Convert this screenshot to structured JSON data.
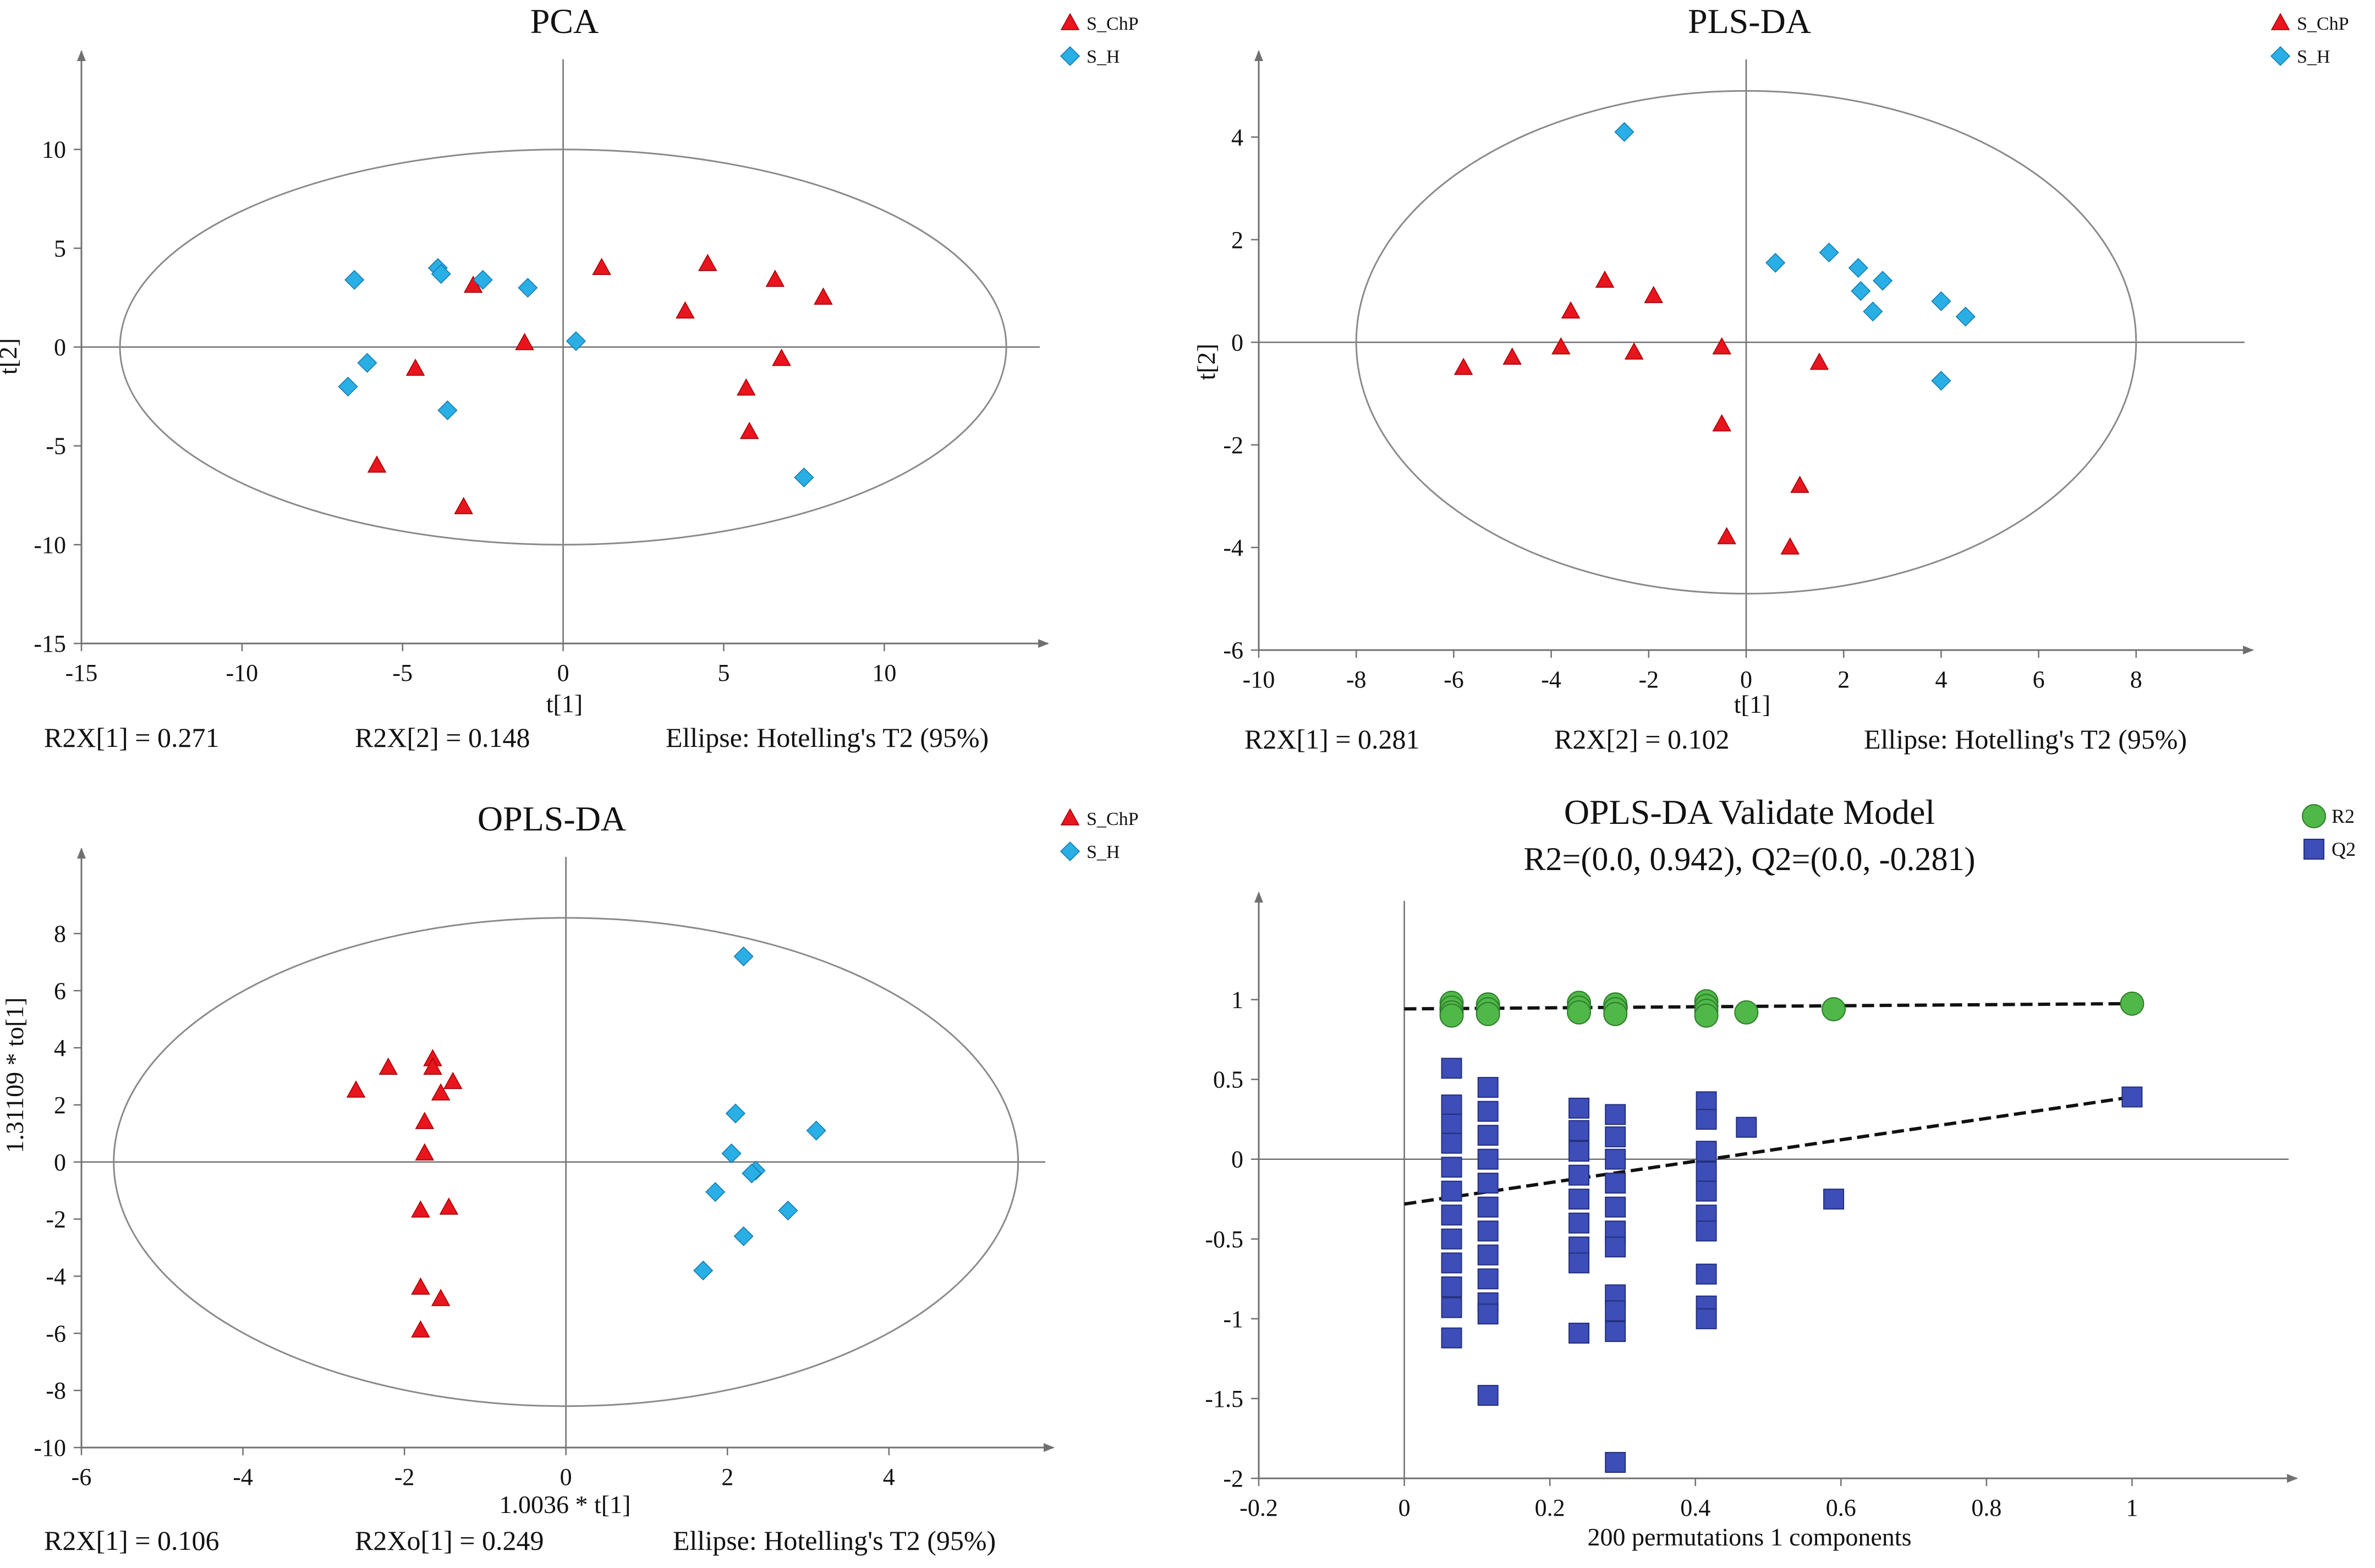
{
  "colors": {
    "red": "#e8141e",
    "blue": "#29aee6",
    "green": "#4fb848",
    "navy": "#3d4eb8",
    "axis": "#707070"
  },
  "chart_data": [
    {
      "id": "pca",
      "type": "scatter",
      "title": "PCA",
      "xlabel": "t[1]",
      "ylabel": "t[2]",
      "xlim": [
        -15,
        14.5
      ],
      "ylim": [
        -15,
        14
      ],
      "xticks": [
        -15,
        -10,
        -5,
        0,
        5,
        10
      ],
      "yticks": [
        -15,
        -10,
        -5,
        0,
        5,
        10
      ],
      "xtick_labels": [
        "-15",
        "-10",
        "-5",
        "0",
        "5",
        "10"
      ],
      "ytick_labels": [
        "-15",
        "-10",
        "-5",
        "0",
        "5",
        "10"
      ],
      "ellipse": {
        "cx": 0,
        "cy": 0,
        "rx": 13.8,
        "ry": 10.0
      },
      "legend": [
        "S_ChP",
        "S_H"
      ],
      "legend_position": "top-right",
      "stats": [
        "R2X[1] = 0.271",
        "R2X[2] = 0.148",
        "Ellipse: Hotelling's T2 (95%)"
      ],
      "series": [
        {
          "name": "S_ChP",
          "marker": "triangle",
          "color": "#e8141e",
          "points": [
            [
              1.2,
              4
            ],
            [
              4.5,
              4.2
            ],
            [
              6.6,
              3.4
            ],
            [
              8.1,
              2.5
            ],
            [
              3.8,
              1.8
            ],
            [
              -2.8,
              3.1
            ],
            [
              -1.2,
              0.2
            ],
            [
              6.8,
              -0.6
            ],
            [
              5.7,
              -2.1
            ],
            [
              5.8,
              -4.3
            ],
            [
              -4.6,
              -1.1
            ],
            [
              -5.8,
              -6.0
            ],
            [
              -3.1,
              -8.1
            ]
          ]
        },
        {
          "name": "S_H",
          "marker": "diamond",
          "color": "#29aee6",
          "points": [
            [
              -6.5,
              3.4
            ],
            [
              -3.9,
              4
            ],
            [
              -3.8,
              3.7
            ],
            [
              -2.5,
              3.4
            ],
            [
              -1.1,
              3
            ],
            [
              0.4,
              0.3
            ],
            [
              -6.1,
              -0.8
            ],
            [
              -6.7,
              -2
            ],
            [
              -3.6,
              -3.2
            ],
            [
              7.5,
              -6.6
            ]
          ]
        }
      ]
    },
    {
      "id": "plsda",
      "type": "scatter",
      "title": "PLS-DA",
      "xlabel": "t[1]",
      "ylabel": "t[2]",
      "xlim": [
        -10,
        10
      ],
      "ylim": [
        -6,
        5.3
      ],
      "xticks": [
        -10,
        -8,
        -6,
        -4,
        -2,
        0,
        2,
        4,
        6,
        8
      ],
      "yticks": [
        -6,
        -4,
        -2,
        0,
        2,
        4
      ],
      "xtick_labels": [
        "-10",
        "-8",
        "-6",
        "-4",
        "-2",
        "0",
        "2",
        "4",
        "6",
        "8"
      ],
      "ytick_labels": [
        "-6",
        "-4",
        "-2",
        "0",
        "2",
        "4"
      ],
      "ellipse": {
        "cx": 0,
        "cy": 0,
        "rx": 8.0,
        "ry": 4.9
      },
      "legend": [
        "S_ChP",
        "S_H"
      ],
      "legend_position": "top-right",
      "stats": [
        "R2X[1] = 0.281",
        "R2X[2] = 0.102",
        "Ellipse: Hotelling's T2 (95%)"
      ],
      "series": [
        {
          "name": "S_ChP",
          "marker": "triangle",
          "color": "#e8141e",
          "points": [
            [
              -5.8,
              -0.5
            ],
            [
              -4.8,
              -0.3
            ],
            [
              -3.8,
              -0.1
            ],
            [
              -3.6,
              0.6
            ],
            [
              -2.9,
              1.2
            ],
            [
              -2.3,
              -0.2
            ],
            [
              -1.9,
              0.9
            ],
            [
              -0.5,
              -0.1
            ],
            [
              -0.5,
              -1.6
            ],
            [
              -0.4,
              -3.8
            ],
            [
              1.5,
              -0.4
            ],
            [
              1.1,
              -2.8
            ],
            [
              0.9,
              -4.0
            ]
          ]
        },
        {
          "name": "S_H",
          "marker": "diamond",
          "color": "#29aee6",
          "points": [
            [
              -2.5,
              4.1
            ],
            [
              0.6,
              1.55
            ],
            [
              1.7,
              1.75
            ],
            [
              2.3,
              1.45
            ],
            [
              2.35,
              1.0
            ],
            [
              2.6,
              0.6
            ],
            [
              2.8,
              1.2
            ],
            [
              4.0,
              0.8
            ],
            [
              4.5,
              0.5
            ],
            [
              4.0,
              -0.75
            ]
          ]
        }
      ]
    },
    {
      "id": "oplsda",
      "type": "scatter",
      "title": "OPLS-DA",
      "xlabel": "1.0036 * t[1]",
      "ylabel": "1.31109 * to[1]",
      "xlim": [
        -6,
        5.8
      ],
      "ylim": [
        -10,
        10.3
      ],
      "xticks": [
        -6,
        -4,
        -2,
        0,
        2,
        4
      ],
      "yticks": [
        -10,
        -8,
        -6,
        -4,
        -2,
        0,
        2,
        4,
        6,
        8
      ],
      "xtick_labels": [
        "-6",
        "-4",
        "-2",
        "0",
        "2",
        "4"
      ],
      "ytick_labels": [
        "-10",
        "-8",
        "-6",
        "-4",
        "-2",
        "0",
        "2",
        "4",
        "6",
        "8"
      ],
      "ellipse": {
        "cx": 0,
        "cy": 0,
        "rx": 5.6,
        "ry": 8.55
      },
      "legend": [
        "S_ChP",
        "S_H"
      ],
      "legend_position": "top-right",
      "stats": [
        "R2X[1] = 0.106",
        "R2Xo[1] = 0.249",
        "Ellipse: Hotelling's T2 (95%)"
      ],
      "series": [
        {
          "name": "S_ChP",
          "marker": "triangle",
          "color": "#e8141e",
          "points": [
            [
              -2.6,
              2.5
            ],
            [
              -2.2,
              3.3
            ],
            [
              -1.65,
              3.6
            ],
            [
              -1.65,
              3.3
            ],
            [
              -1.4,
              2.8
            ],
            [
              -1.55,
              2.4
            ],
            [
              -1.75,
              1.4
            ],
            [
              -1.75,
              0.3
            ],
            [
              -1.8,
              -1.7
            ],
            [
              -1.45,
              -1.6
            ],
            [
              -1.8,
              -4.4
            ],
            [
              -1.55,
              -4.8
            ],
            [
              -1.8,
              -5.9
            ]
          ]
        },
        {
          "name": "S_H",
          "marker": "diamond",
          "color": "#29aee6",
          "points": [
            [
              2.2,
              7.2
            ],
            [
              2.1,
              1.7
            ],
            [
              3.1,
              1.1
            ],
            [
              2.05,
              0.3
            ],
            [
              2.35,
              -0.3
            ],
            [
              2.3,
              -0.4
            ],
            [
              1.85,
              -1.05
            ],
            [
              2.75,
              -1.7
            ],
            [
              2.2,
              -2.6
            ],
            [
              1.7,
              -3.8
            ]
          ]
        }
      ]
    },
    {
      "id": "validate",
      "type": "scatter",
      "title": "OPLS-DA Validate Model",
      "subtitle": "R2=(0.0, 0.942), Q2=(0.0, -0.281)",
      "xlabel": "200 permutations 1 components",
      "ylabel": "",
      "xlim": [
        -0.2,
        1.2
      ],
      "ylim": [
        -2.0,
        1.55
      ],
      "xticks": [
        -0.2,
        0,
        0.2,
        0.4,
        0.6,
        0.8,
        1
      ],
      "yticks": [
        -2,
        -1.5,
        -1,
        -0.5,
        0,
        0.5,
        1
      ],
      "xtick_labels": [
        "-0.2",
        "0",
        "0.2",
        "0.4",
        "0.6",
        "0.8",
        "1"
      ],
      "ytick_labels": [
        "-2",
        "-1.5",
        "-1",
        "-0.5",
        "0",
        "0.5",
        "1"
      ],
      "legend": [
        "R2",
        "Q2"
      ],
      "legend_position": "top-right",
      "regression_lines": [
        {
          "name": "R2",
          "x0": 0,
          "y0": 0.942,
          "x1": 1.0,
          "y1": 0.975
        },
        {
          "name": "Q2",
          "x0": 0,
          "y0": -0.281,
          "x1": 1.0,
          "y1": 0.39
        }
      ],
      "series": [
        {
          "name": "R2",
          "marker": "circle",
          "color": "#4fb848",
          "points": [
            [
              0.065,
              0.98
            ],
            [
              0.065,
              0.95
            ],
            [
              0.065,
              0.92
            ],
            [
              0.065,
              0.9
            ],
            [
              0.115,
              0.97
            ],
            [
              0.115,
              0.94
            ],
            [
              0.115,
              0.91
            ],
            [
              0.24,
              0.98
            ],
            [
              0.24,
              0.95
            ],
            [
              0.24,
              0.92
            ],
            [
              0.29,
              0.97
            ],
            [
              0.29,
              0.94
            ],
            [
              0.29,
              0.91
            ],
            [
              0.415,
              0.99
            ],
            [
              0.415,
              0.96
            ],
            [
              0.415,
              0.93
            ],
            [
              0.415,
              0.9
            ],
            [
              0.47,
              0.92
            ],
            [
              0.59,
              0.94
            ],
            [
              1.0,
              0.975
            ]
          ]
        },
        {
          "name": "Q2",
          "marker": "square",
          "color": "#3d4eb8",
          "points": [
            [
              0.065,
              0.57
            ],
            [
              0.065,
              0.34
            ],
            [
              0.065,
              0.22
            ],
            [
              0.065,
              0.1
            ],
            [
              0.065,
              -0.05
            ],
            [
              0.065,
              -0.2
            ],
            [
              0.065,
              -0.35
            ],
            [
              0.065,
              -0.5
            ],
            [
              0.065,
              -0.65
            ],
            [
              0.065,
              -0.8
            ],
            [
              0.065,
              -0.93
            ],
            [
              0.065,
              -1.12
            ],
            [
              0.115,
              0.45
            ],
            [
              0.115,
              0.3
            ],
            [
              0.115,
              0.15
            ],
            [
              0.115,
              0.0
            ],
            [
              0.115,
              -0.15
            ],
            [
              0.115,
              -0.3
            ],
            [
              0.115,
              -0.45
            ],
            [
              0.115,
              -0.6
            ],
            [
              0.115,
              -0.75
            ],
            [
              0.115,
              -0.9
            ],
            [
              0.115,
              -0.97
            ],
            [
              0.115,
              -1.48
            ],
            [
              0.24,
              0.32
            ],
            [
              0.24,
              0.18
            ],
            [
              0.24,
              0.05
            ],
            [
              0.24,
              -0.1
            ],
            [
              0.24,
              -0.25
            ],
            [
              0.24,
              -0.4
            ],
            [
              0.24,
              -0.55
            ],
            [
              0.24,
              -0.65
            ],
            [
              0.24,
              -1.09
            ],
            [
              0.29,
              0.28
            ],
            [
              0.29,
              0.14
            ],
            [
              0.29,
              0.0
            ],
            [
              0.29,
              -0.15
            ],
            [
              0.29,
              -0.3
            ],
            [
              0.29,
              -0.45
            ],
            [
              0.29,
              -0.55
            ],
            [
              0.29,
              -0.85
            ],
            [
              0.29,
              -0.95
            ],
            [
              0.29,
              -1.08
            ],
            [
              0.29,
              -1.9
            ],
            [
              0.415,
              0.36
            ],
            [
              0.415,
              0.25
            ],
            [
              0.415,
              0.05
            ],
            [
              0.415,
              -0.08
            ],
            [
              0.415,
              -0.2
            ],
            [
              0.415,
              -0.35
            ],
            [
              0.415,
              -0.45
            ],
            [
              0.415,
              -0.72
            ],
            [
              0.415,
              -0.92
            ],
            [
              0.415,
              -1.0
            ],
            [
              0.47,
              0.2
            ],
            [
              0.59,
              -0.25
            ],
            [
              1.0,
              0.39
            ]
          ]
        }
      ]
    }
  ]
}
